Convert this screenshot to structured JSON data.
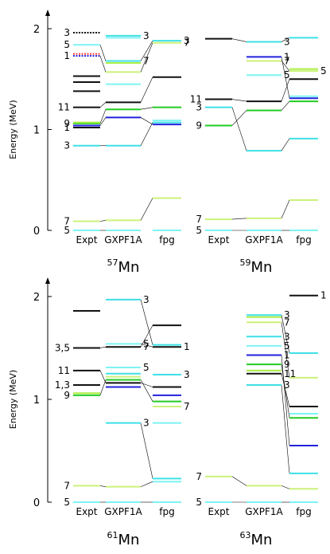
{
  "chart_data": [
    {
      "type": "level-scheme",
      "nucleus": {
        "mass": "57",
        "element": "Mn"
      },
      "ylabel": "Energy (MeV)",
      "ylim": [
        0,
        2.05
      ],
      "yticks": [
        "0",
        "1",
        "2"
      ],
      "columns": [
        "Expt",
        "GXPF1A",
        "fpg"
      ],
      "levels": [
        {
          "col": 0,
          "e": 0.0,
          "color": "#7ef3f3",
          "label": "5"
        },
        {
          "col": 0,
          "e": 0.09,
          "color": "#ccf27a",
          "label": "7"
        },
        {
          "col": 0,
          "e": 0.84,
          "color": "#3ee0e6",
          "label": "3"
        },
        {
          "col": 0,
          "e": 1.02,
          "color": "#111111",
          "label": "1"
        },
        {
          "col": 0,
          "e": 1.04,
          "color": "#2222dd",
          "label": ""
        },
        {
          "col": 0,
          "e": 1.06,
          "color": "#22cc22",
          "label": "9"
        },
        {
          "col": 0,
          "e": 1.07,
          "color": "#aaee44",
          "label": ""
        },
        {
          "col": 0,
          "e": 1.22,
          "color": "#111111",
          "label": "11"
        },
        {
          "col": 0,
          "e": 1.38,
          "color": "#111111",
          "label": ""
        },
        {
          "col": 0,
          "e": 1.47,
          "color": "#111111",
          "label": ""
        },
        {
          "col": 0,
          "e": 1.53,
          "color": "#111111",
          "label": ""
        },
        {
          "col": 0,
          "e": 1.73,
          "color": "#2222dd",
          "label": "1",
          "dotted": true
        },
        {
          "col": 0,
          "e": 1.75,
          "color": "#ff4444",
          "label": "",
          "dotted": true
        },
        {
          "col": 0,
          "e": 1.84,
          "color": "#7ef3f3",
          "label": "5"
        },
        {
          "col": 0,
          "e": 1.96,
          "color": "#111111",
          "label": "3",
          "dotted": true
        },
        {
          "col": 1,
          "e": 0.0,
          "color": "#7ef3f3",
          "label": ""
        },
        {
          "col": 1,
          "e": 0.1,
          "color": "#ccf27a",
          "label": ""
        },
        {
          "col": 1,
          "e": 0.84,
          "color": "#3ee0e6",
          "label": ""
        },
        {
          "col": 1,
          "e": 1.12,
          "color": "#2222dd",
          "label": ""
        },
        {
          "col": 1,
          "e": 1.2,
          "color": "#22cc22",
          "label": ""
        },
        {
          "col": 1,
          "e": 1.27,
          "color": "#111111",
          "label": ""
        },
        {
          "col": 1,
          "e": 1.45,
          "color": "#7ef3f3",
          "label": ""
        },
        {
          "col": 1,
          "e": 1.57,
          "color": "#ccf27a",
          "label": ""
        },
        {
          "col": 1,
          "e": 1.66,
          "color": "#aaee44",
          "label": ""
        },
        {
          "col": 1,
          "e": 1.68,
          "color": "#3ee0e6",
          "label": "7"
        },
        {
          "col": 1,
          "e": 1.91,
          "color": "#7ef3f3",
          "label": ""
        },
        {
          "col": 1,
          "e": 1.93,
          "color": "#3ee0e6",
          "label": "3"
        },
        {
          "col": 2,
          "e": 0.0,
          "color": "#7ef3f3",
          "label": ""
        },
        {
          "col": 2,
          "e": 0.32,
          "color": "#ccf27a",
          "label": ""
        },
        {
          "col": 2,
          "e": 1.05,
          "color": "#2222dd",
          "label": ""
        },
        {
          "col": 2,
          "e": 1.07,
          "color": "#3ee0e6",
          "label": ""
        },
        {
          "col": 2,
          "e": 1.09,
          "color": "#7ef3f3",
          "label": ""
        },
        {
          "col": 2,
          "e": 1.22,
          "color": "#22cc22",
          "label": ""
        },
        {
          "col": 2,
          "e": 1.52,
          "color": "#111111",
          "label": ""
        },
        {
          "col": 2,
          "e": 1.86,
          "color": "#ccf27a",
          "label": "7"
        },
        {
          "col": 2,
          "e": 1.88,
          "color": "#3ee0e6",
          "label": "3"
        }
      ],
      "links": [
        [
          0,
          0
        ],
        [
          0.09,
          0.1,
          0.32
        ],
        [
          0.84,
          0.84,
          1.07
        ],
        [
          1.04,
          1.12,
          1.05
        ],
        [
          1.06,
          1.2,
          1.22
        ],
        [
          1.22,
          1.27,
          1.52
        ],
        [
          1.84,
          1.68,
          1.88
        ],
        [
          1.73,
          1.57,
          1.86
        ]
      ]
    },
    {
      "type": "level-scheme",
      "nucleus": {
        "mass": "59",
        "element": "Mn"
      },
      "ylim": [
        0,
        2.05
      ],
      "columns": [
        "Expt",
        "GXPF1A",
        "fpg"
      ],
      "levels": [
        {
          "col": 0,
          "e": 0.0,
          "color": "#7ef3f3",
          "label": "5"
        },
        {
          "col": 0,
          "e": 0.11,
          "color": "#ccf27a",
          "label": "7"
        },
        {
          "col": 0,
          "e": 0.0,
          "color": "#7ef3f3",
          "label": ""
        },
        {
          "col": 0,
          "e": 1.04,
          "color": "#22cc22",
          "label": "9"
        },
        {
          "col": 0,
          "e": 1.22,
          "color": "#3ee0e6",
          "label": "3"
        },
        {
          "col": 0,
          "e": 1.3,
          "color": "#111111",
          "label": "11"
        },
        {
          "col": 0,
          "e": 1.9,
          "color": "#111111",
          "label": ""
        },
        {
          "col": 1,
          "e": 0.0,
          "color": "#7ef3f3",
          "label": ""
        },
        {
          "col": 1,
          "e": 0.12,
          "color": "#ccf27a",
          "label": ""
        },
        {
          "col": 1,
          "e": 0.79,
          "color": "#3ee0e6",
          "label": ""
        },
        {
          "col": 1,
          "e": 1.19,
          "color": "#22cc22",
          "label": ""
        },
        {
          "col": 1,
          "e": 1.28,
          "color": "#111111",
          "label": ""
        },
        {
          "col": 1,
          "e": 1.54,
          "color": "#7ef3f3",
          "label": "5"
        },
        {
          "col": 1,
          "e": 1.68,
          "color": "#ccf27a",
          "label": "7"
        },
        {
          "col": 1,
          "e": 1.72,
          "color": "#2222dd",
          "label": "1"
        },
        {
          "col": 1,
          "e": 1.87,
          "color": "#3ee0e6",
          "label": "3"
        },
        {
          "col": 2,
          "e": 0.0,
          "color": "#7ef3f3",
          "label": ""
        },
        {
          "col": 2,
          "e": 0.3,
          "color": "#ccf27a",
          "label": ""
        },
        {
          "col": 2,
          "e": 0.91,
          "color": "#3ee0e6",
          "label": ""
        },
        {
          "col": 2,
          "e": 1.28,
          "color": "#22cc22",
          "label": ""
        },
        {
          "col": 2,
          "e": 1.31,
          "color": "#2222dd",
          "label": ""
        },
        {
          "col": 2,
          "e": 1.33,
          "color": "#7ef3f3",
          "label": ""
        },
        {
          "col": 2,
          "e": 1.5,
          "color": "#111111",
          "label": ""
        },
        {
          "col": 2,
          "e": 1.58,
          "color": "#ccf27a",
          "label": "5"
        },
        {
          "col": 2,
          "e": 1.6,
          "color": "#aaee44",
          "label": ""
        },
        {
          "col": 2,
          "e": 1.91,
          "color": "#3ee0e6",
          "label": ""
        }
      ],
      "links": [
        [
          0,
          0,
          0
        ],
        [
          0.11,
          0.12,
          0.3
        ],
        [
          1.22,
          0.79,
          0.91
        ],
        [
          1.04,
          1.19,
          1.28
        ],
        [
          1.3,
          1.28,
          1.5
        ],
        [
          1.9,
          1.87,
          1.91
        ],
        [
          null,
          1.68,
          1.58
        ],
        [
          null,
          1.72,
          1.31
        ]
      ]
    },
    {
      "type": "level-scheme",
      "nucleus": {
        "mass": "61",
        "element": "Mn"
      },
      "ylabel": "Energy (MeV)",
      "ylim": [
        0,
        2.05
      ],
      "yticks": [
        "0",
        "1",
        "2"
      ],
      "columns": [
        "Expt",
        "GXPF1A",
        "fpg"
      ],
      "levels": [
        {
          "col": 0,
          "e": 0.0,
          "color": "#7ef3f3",
          "label": "5"
        },
        {
          "col": 0,
          "e": 0.16,
          "color": "#ccf27a",
          "label": "7"
        },
        {
          "col": 0,
          "e": 1.04,
          "color": "#22cc22",
          "label": "9"
        },
        {
          "col": 0,
          "e": 1.06,
          "color": "#aaee44",
          "label": ""
        },
        {
          "col": 0,
          "e": 1.14,
          "color": "#111111",
          "label": "1,3"
        },
        {
          "col": 0,
          "e": 1.28,
          "color": "#111111",
          "label": "11"
        },
        {
          "col": 0,
          "e": 1.5,
          "color": "#111111",
          "label": "3,5"
        },
        {
          "col": 0,
          "e": 1.86,
          "color": "#111111",
          "label": ""
        },
        {
          "col": 1,
          "e": 0.0,
          "color": "#7ef3f3",
          "label": ""
        },
        {
          "col": 1,
          "e": 0.15,
          "color": "#ccf27a",
          "label": ""
        },
        {
          "col": 1,
          "e": 0.77,
          "color": "#3ee0e6",
          "label": "3"
        },
        {
          "col": 1,
          "e": 1.12,
          "color": "#2222dd",
          "label": ""
        },
        {
          "col": 1,
          "e": 1.16,
          "color": "#111111",
          "label": ""
        },
        {
          "col": 1,
          "e": 1.19,
          "color": "#22cc22",
          "label": ""
        },
        {
          "col": 1,
          "e": 1.22,
          "color": "#ccf27a",
          "label": ""
        },
        {
          "col": 1,
          "e": 1.25,
          "color": "#3ee0e6",
          "label": ""
        },
        {
          "col": 1,
          "e": 1.31,
          "color": "#7ef3f3",
          "label": "5"
        },
        {
          "col": 1,
          "e": 1.51,
          "color": "#111111",
          "label": "7"
        },
        {
          "col": 1,
          "e": 1.54,
          "color": "#7ef3f3",
          "label": "5"
        },
        {
          "col": 1,
          "e": 1.97,
          "color": "#3ee0e6",
          "label": "3"
        },
        {
          "col": 2,
          "e": 0.0,
          "color": "#7ef3f3",
          "label": ""
        },
        {
          "col": 2,
          "e": 0.2,
          "color": "#7ef3f3",
          "label": ""
        },
        {
          "col": 2,
          "e": 0.23,
          "color": "#3ee0e6",
          "label": ""
        },
        {
          "col": 2,
          "e": 0.77,
          "color": "#7ef3f3",
          "label": ""
        },
        {
          "col": 2,
          "e": 0.93,
          "color": "#ccf27a",
          "label": "7"
        },
        {
          "col": 2,
          "e": 0.98,
          "color": "#22cc22",
          "label": ""
        },
        {
          "col": 2,
          "e": 1.04,
          "color": "#2222dd",
          "label": ""
        },
        {
          "col": 2,
          "e": 1.12,
          "color": "#111111",
          "label": ""
        },
        {
          "col": 2,
          "e": 1.24,
          "color": "#3ee0e6",
          "label": "3"
        },
        {
          "col": 2,
          "e": 1.51,
          "color": "#111111",
          "label": "1"
        },
        {
          "col": 2,
          "e": 1.53,
          "color": "#3ee0e6",
          "label": ""
        },
        {
          "col": 2,
          "e": 1.72,
          "color": "#111111",
          "label": ""
        }
      ],
      "links": [
        [
          0,
          0,
          0
        ],
        [
          0.16,
          0.15,
          0.2
        ],
        [
          null,
          0.77,
          0.23
        ],
        [
          1.04,
          1.19,
          0.98
        ],
        [
          1.28,
          1.16,
          1.12
        ],
        [
          1.5,
          1.51,
          1.72
        ],
        [
          null,
          1.97,
          1.53
        ],
        [
          null,
          1.54,
          1.51
        ]
      ]
    },
    {
      "type": "level-scheme",
      "nucleus": {
        "mass": "63",
        "element": "Mn"
      },
      "ylim": [
        0,
        2.05
      ],
      "columns": [
        "Expt",
        "GXPF1A",
        "fpg"
      ],
      "levels": [
        {
          "col": 0,
          "e": 0.0,
          "color": "#7ef3f3",
          "label": "5"
        },
        {
          "col": 0,
          "e": 0.25,
          "color": "#ccf27a",
          "label": "7"
        },
        {
          "col": 1,
          "e": 0.0,
          "color": "#7ef3f3",
          "label": ""
        },
        {
          "col": 1,
          "e": 0.16,
          "color": "#ccf27a",
          "label": ""
        },
        {
          "col": 1,
          "e": 1.14,
          "color": "#3ee0e6",
          "label": "3"
        },
        {
          "col": 1,
          "e": 1.25,
          "color": "#111111",
          "label": "11"
        },
        {
          "col": 1,
          "e": 1.28,
          "color": "#aaee44",
          "label": ""
        },
        {
          "col": 1,
          "e": 1.34,
          "color": "#22cc22",
          "label": "9"
        },
        {
          "col": 1,
          "e": 1.43,
          "color": "#2222dd",
          "label": "1"
        },
        {
          "col": 1,
          "e": 1.52,
          "color": "#7ef3f3",
          "label": "5"
        },
        {
          "col": 1,
          "e": 1.61,
          "color": "#3ee0e6",
          "label": "3"
        },
        {
          "col": 1,
          "e": 1.75,
          "color": "#ccf27a",
          "label": "7"
        },
        {
          "col": 1,
          "e": 1.8,
          "color": "#aaee44",
          "label": ""
        },
        {
          "col": 1,
          "e": 1.82,
          "color": "#3ee0e6",
          "label": "3"
        },
        {
          "col": 2,
          "e": 0.0,
          "color": "#7ef3f3",
          "label": ""
        },
        {
          "col": 2,
          "e": 0.13,
          "color": "#ccf27a",
          "label": ""
        },
        {
          "col": 2,
          "e": 0.28,
          "color": "#3ee0e6",
          "label": ""
        },
        {
          "col": 2,
          "e": 0.55,
          "color": "#2222dd",
          "label": ""
        },
        {
          "col": 2,
          "e": 0.82,
          "color": "#22cc22",
          "label": ""
        },
        {
          "col": 2,
          "e": 0.86,
          "color": "#7ef3f3",
          "label": ""
        },
        {
          "col": 2,
          "e": 0.93,
          "color": "#111111",
          "label": ""
        },
        {
          "col": 2,
          "e": 1.21,
          "color": "#ccf27a",
          "label": ""
        },
        {
          "col": 2,
          "e": 1.45,
          "color": "#3ee0e6",
          "label": ""
        },
        {
          "col": 2,
          "e": 2.01,
          "color": "#111111",
          "label": "1"
        }
      ],
      "links": [
        [
          0,
          0,
          0
        ],
        [
          0.25,
          0.16,
          0.13
        ],
        [
          null,
          1.14,
          0.28
        ],
        [
          null,
          1.25,
          0.93
        ],
        [
          null,
          1.34,
          0.82
        ],
        [
          null,
          1.43,
          0.55
        ],
        [
          null,
          1.75,
          1.21
        ],
        [
          null,
          1.82,
          1.45
        ]
      ]
    }
  ]
}
